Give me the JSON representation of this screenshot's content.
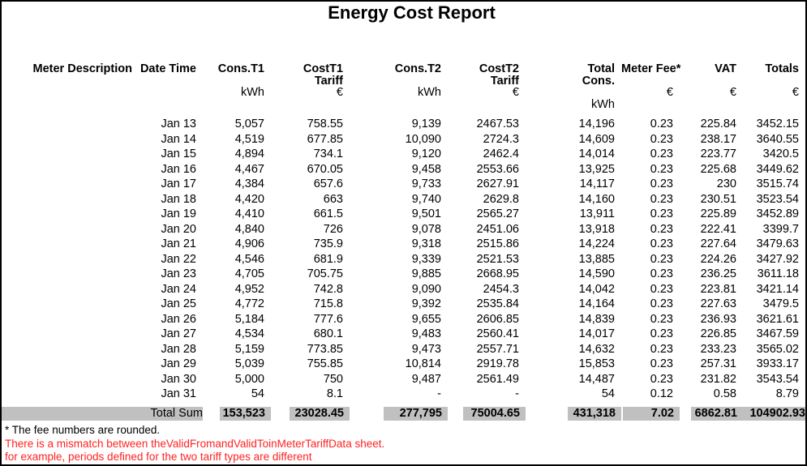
{
  "title": "Energy Cost Report",
  "colors": {
    "total_band_gray": "#C0C0C0",
    "warning_red": "#FF2222"
  },
  "table": {
    "column_keys": [
      "meter-description",
      "date-time",
      "cons-t1",
      "cost-t1-tariff",
      "cons-t2",
      "cost-t2-tariff",
      "total-cons",
      "meter-fee",
      "vat",
      "totals"
    ],
    "header_lines": [
      [
        "Meter Description",
        "Date Time",
        "Cons.T1",
        "CostT1",
        "Cons.T2",
        "CostT2",
        "Total",
        "Meter Fee*",
        "VAT",
        "Totals"
      ],
      [
        "",
        "",
        "",
        "Tariff",
        "",
        "Tariff",
        "Cons.",
        "",
        "",
        ""
      ],
      [
        "",
        "",
        "kWh",
        "€",
        "kWh",
        "€",
        "",
        "€",
        "€",
        "€"
      ],
      [
        "",
        "",
        "",
        "",
        "",
        "",
        "kWh",
        "",
        "",
        ""
      ]
    ],
    "rows": [
      [
        "",
        "Jan 13",
        "5,057",
        "758.55",
        "9,139",
        "2467.53",
        "14,196",
        "0.23",
        "225.84",
        "3452.15"
      ],
      [
        "",
        "Jan 14",
        "4,519",
        "677.85",
        "10,090",
        "2724.3",
        "14,609",
        "0.23",
        "238.17",
        "3640.55"
      ],
      [
        "",
        "Jan 15",
        "4,894",
        "734.1",
        "9,120",
        "2462.4",
        "14,014",
        "0.23",
        "223.77",
        "3420.5"
      ],
      [
        "",
        "Jan 16",
        "4,467",
        "670.05",
        "9,458",
        "2553.66",
        "13,925",
        "0.23",
        "225.68",
        "3449.62"
      ],
      [
        "",
        "Jan 17",
        "4,384",
        "657.6",
        "9,733",
        "2627.91",
        "14,117",
        "0.23",
        "230",
        "3515.74"
      ],
      [
        "",
        "Jan 18",
        "4,420",
        "663",
        "9,740",
        "2629.8",
        "14,160",
        "0.23",
        "230.51",
        "3523.54"
      ],
      [
        "",
        "Jan 19",
        "4,410",
        "661.5",
        "9,501",
        "2565.27",
        "13,911",
        "0.23",
        "225.89",
        "3452.89"
      ],
      [
        "",
        "Jan 20",
        "4,840",
        "726",
        "9,078",
        "2451.06",
        "13,918",
        "0.23",
        "222.41",
        "3399.7"
      ],
      [
        "",
        "Jan 21",
        "4,906",
        "735.9",
        "9,318",
        "2515.86",
        "14,224",
        "0.23",
        "227.64",
        "3479.63"
      ],
      [
        "",
        "Jan 22",
        "4,546",
        "681.9",
        "9,339",
        "2521.53",
        "13,885",
        "0.23",
        "224.26",
        "3427.92"
      ],
      [
        "",
        "Jan 23",
        "4,705",
        "705.75",
        "9,885",
        "2668.95",
        "14,590",
        "0.23",
        "236.25",
        "3611.18"
      ],
      [
        "",
        "Jan 24",
        "4,952",
        "742.8",
        "9,090",
        "2454.3",
        "14,042",
        "0.23",
        "223.81",
        "3421.14"
      ],
      [
        "",
        "Jan 25",
        "4,772",
        "715.8",
        "9,392",
        "2535.84",
        "14,164",
        "0.23",
        "227.63",
        "3479.5"
      ],
      [
        "",
        "Jan 26",
        "5,184",
        "777.6",
        "9,655",
        "2606.85",
        "14,839",
        "0.23",
        "236.93",
        "3621.61"
      ],
      [
        "",
        "Jan 27",
        "4,534",
        "680.1",
        "9,483",
        "2560.41",
        "14,017",
        "0.23",
        "226.85",
        "3467.59"
      ],
      [
        "",
        "Jan 28",
        "5,159",
        "773.85",
        "9,473",
        "2557.71",
        "14,632",
        "0.23",
        "233.23",
        "3565.02"
      ],
      [
        "",
        "Jan 29",
        "5,039",
        "755.85",
        "10,814",
        "2919.78",
        "15,853",
        "0.23",
        "257.31",
        "3933.17"
      ],
      [
        "",
        "Jan 30",
        "5,000",
        "750",
        "9,487",
        "2561.49",
        "14,487",
        "0.23",
        "231.82",
        "3543.54"
      ],
      [
        "",
        "Jan 31",
        "54",
        "8.1",
        "-",
        "-",
        "54",
        "0.12",
        "0.58",
        "8.79"
      ]
    ],
    "total_row": {
      "label": "Total Sum",
      "values": [
        "153,523",
        "23028.45",
        "277,795",
        "75004.65",
        "431,318",
        "7.02",
        "6862.81",
        "104902.93"
      ]
    }
  },
  "footnotes": {
    "fee_note": "* The fee numbers are rounded.",
    "warning_line_1": "There is a mismatch between theValidFromandValidToinMeterTariffData sheet.",
    "warning_line_2": "for example, periods defined for the two tariff types are different"
  }
}
